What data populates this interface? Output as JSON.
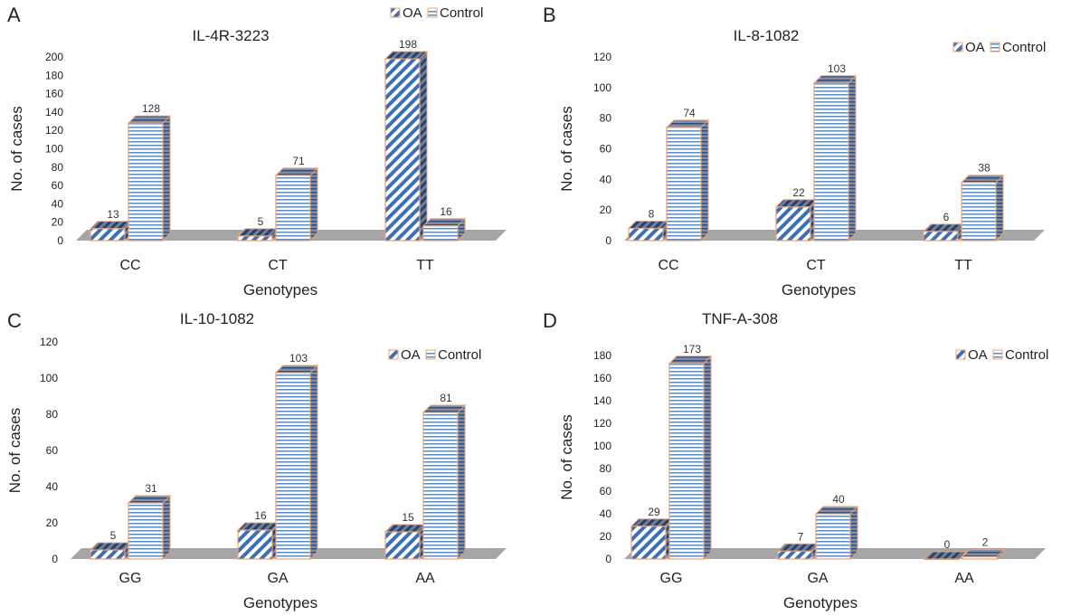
{
  "colors": {
    "oa_stripe": "#3b6fb6",
    "control_stripe": "#4f8fd6",
    "bar_edge": "#f0a070",
    "floor": "#a6a6a6",
    "text": "#222222"
  },
  "chart_data": [
    {
      "panel_letter": "A",
      "type": "bar",
      "title": "IL-4R-3223",
      "xlabel": "Genotypes",
      "ylabel": "No. of cases",
      "categories": [
        "CC",
        "CT",
        "TT"
      ],
      "yticks": [
        "0",
        "20",
        "40",
        "60",
        "80",
        "100",
        "120",
        "140",
        "160",
        "180",
        "200"
      ],
      "ylim": [
        0,
        200
      ],
      "legend_position": "top-right",
      "series": [
        {
          "name": "OA",
          "values": [
            13,
            5,
            198
          ],
          "labels": [
            "13",
            "5",
            "198"
          ]
        },
        {
          "name": "Control",
          "values": [
            128,
            71,
            16
          ],
          "labels": [
            "128",
            "71",
            "16"
          ]
        }
      ]
    },
    {
      "panel_letter": "B",
      "type": "bar",
      "title": "IL-8-1082",
      "xlabel": "Genotypes",
      "ylabel": "No. of cases",
      "categories": [
        "CC",
        "CT",
        "TT"
      ],
      "yticks": [
        "0",
        "20",
        "40",
        "60",
        "80",
        "100",
        "120"
      ],
      "ylim": [
        0,
        120
      ],
      "legend_position": "top-right",
      "series": [
        {
          "name": "OA",
          "values": [
            8,
            22,
            6
          ],
          "labels": [
            "8",
            "22",
            "6"
          ]
        },
        {
          "name": "Control",
          "values": [
            74,
            103,
            38
          ],
          "labels": [
            "74",
            "103",
            "38"
          ]
        }
      ]
    },
    {
      "panel_letter": "C",
      "type": "bar",
      "title": "IL-10-1082",
      "xlabel": "Genotypes",
      "ylabel": "No. of cases",
      "categories": [
        "GG",
        "GA",
        "AA"
      ],
      "yticks": [
        "0",
        "20",
        "40",
        "60",
        "80",
        "100",
        "120"
      ],
      "ylim": [
        0,
        120
      ],
      "legend_position": "top-right",
      "series": [
        {
          "name": "OA",
          "values": [
            5,
            16,
            15
          ],
          "labels": [
            "5",
            "16",
            "15"
          ]
        },
        {
          "name": "Control",
          "values": [
            31,
            103,
            81
          ],
          "labels": [
            "31",
            "103",
            "81"
          ]
        }
      ]
    },
    {
      "panel_letter": "D",
      "type": "bar",
      "title": "TNF-A-308",
      "xlabel": "Genotypes",
      "ylabel": "No. of cases",
      "categories": [
        "GG",
        "GA",
        "AA"
      ],
      "yticks": [
        "0",
        "20",
        "40",
        "60",
        "80",
        "100",
        "120",
        "140",
        "160",
        "180"
      ],
      "ylim": [
        0,
        180
      ],
      "legend_position": "top-right",
      "series": [
        {
          "name": "OA",
          "values": [
            29,
            7,
            0
          ],
          "labels": [
            "29",
            "7",
            "0"
          ]
        },
        {
          "name": "Control",
          "values": [
            173,
            40,
            2
          ],
          "labels": [
            "173",
            "40",
            "2"
          ]
        }
      ]
    }
  ]
}
